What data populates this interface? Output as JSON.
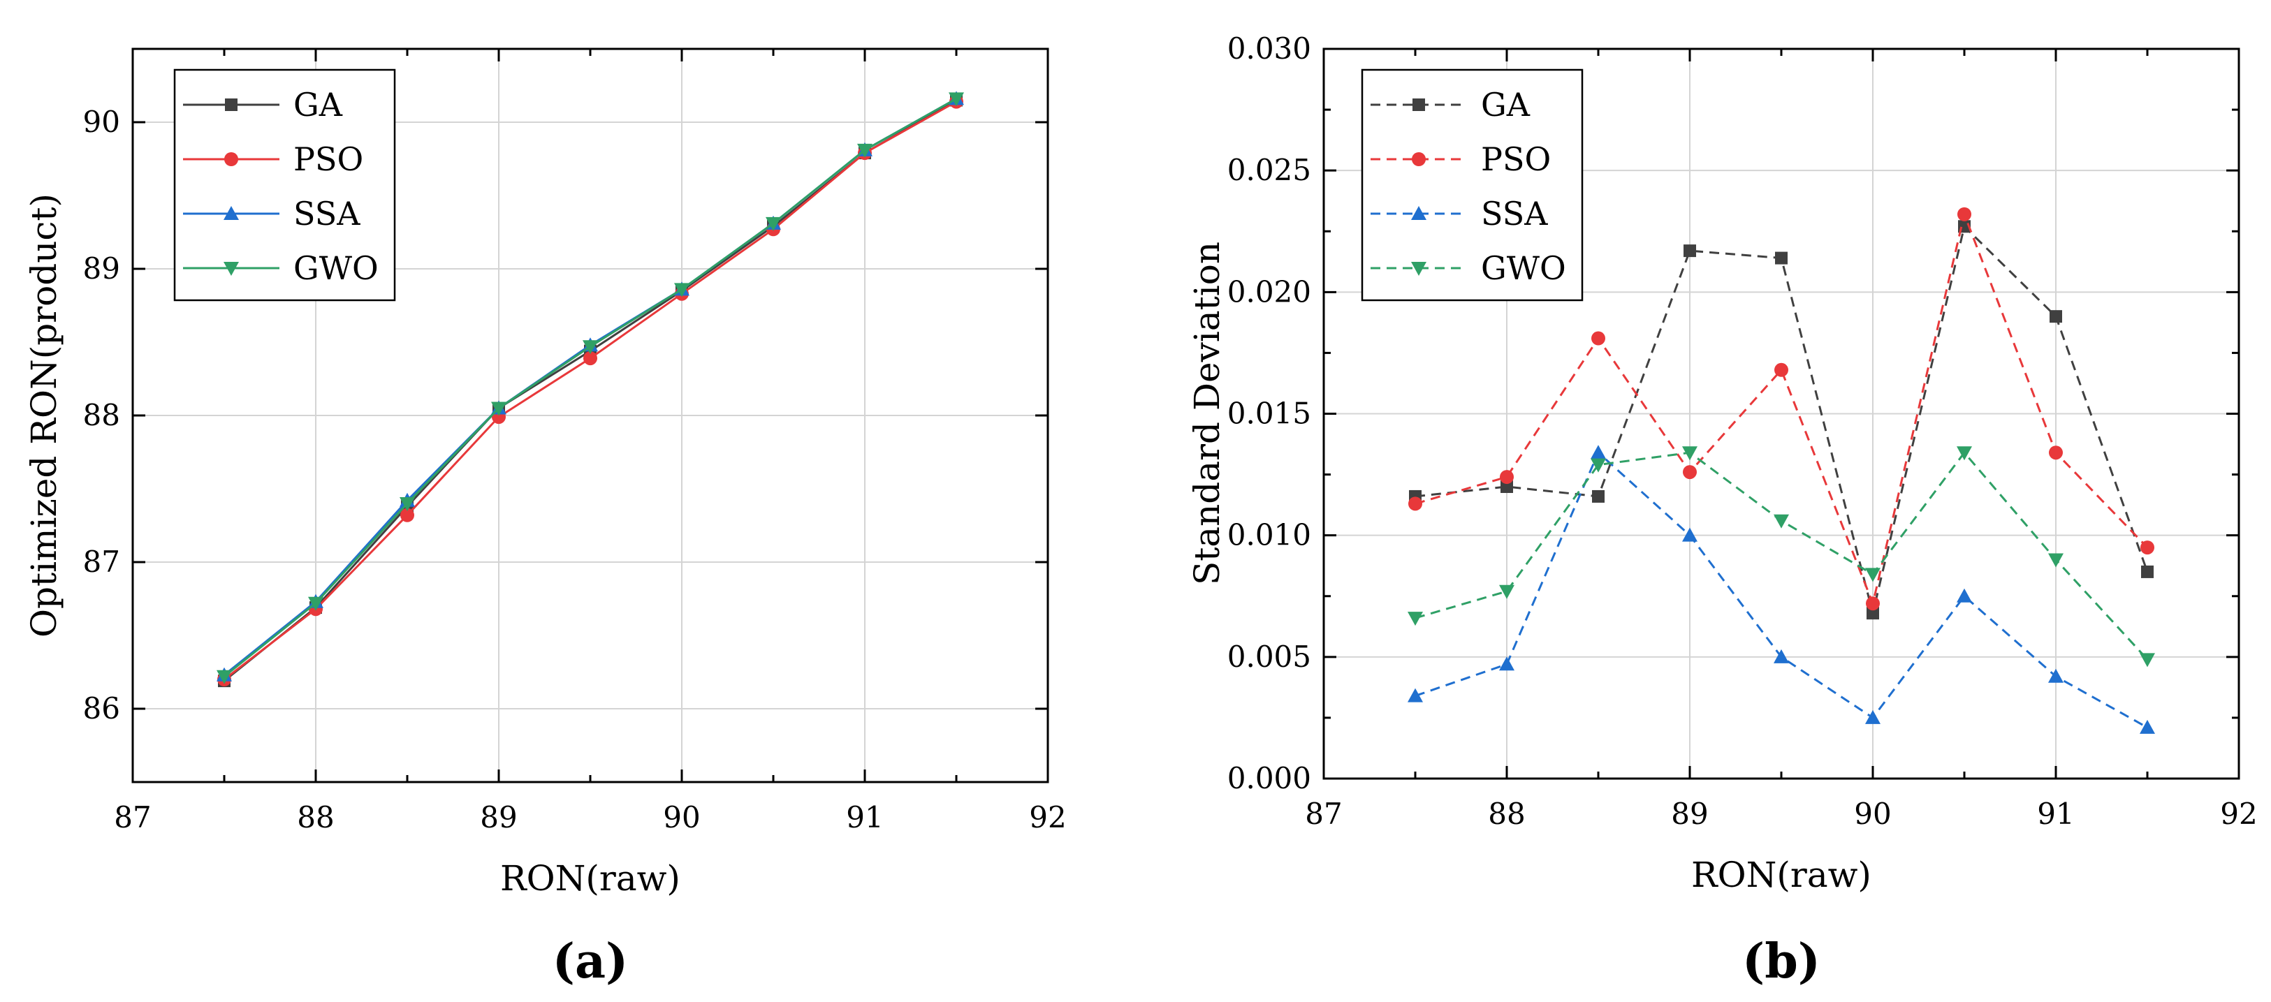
{
  "chart_data": [
    {
      "panel_label": "(a)",
      "type": "line",
      "xlabel": "RON(raw)",
      "ylabel": "Optimized RON(product)",
      "xlim": [
        87,
        92
      ],
      "ylim": [
        85.5,
        90.5
      ],
      "xticks": [
        87,
        88,
        89,
        90,
        91,
        92
      ],
      "yticks": [
        86,
        87,
        88,
        89,
        90
      ],
      "x": [
        87.5,
        88.0,
        88.5,
        89.0,
        89.5,
        90.0,
        90.5,
        91.0,
        91.5
      ],
      "grid": true,
      "legend_position": "top-left",
      "series": [
        {
          "name": "GA",
          "color": "#404040",
          "marker": "square",
          "line": "solid",
          "values": [
            86.19,
            86.69,
            87.38,
            88.05,
            88.44,
            88.85,
            89.29,
            89.79,
            90.15
          ]
        },
        {
          "name": "PSO",
          "color": "#e8383a",
          "marker": "circle",
          "line": "solid",
          "values": [
            86.2,
            86.68,
            87.32,
            87.99,
            88.39,
            88.83,
            89.27,
            89.79,
            90.14
          ]
        },
        {
          "name": "SSA",
          "color": "#1f6fcf",
          "marker": "triangle-up",
          "line": "solid",
          "values": [
            86.23,
            86.73,
            87.42,
            88.05,
            88.48,
            88.86,
            89.31,
            89.81,
            90.16
          ]
        },
        {
          "name": "GWO",
          "color": "#2fa066",
          "marker": "triangle-down",
          "line": "solid",
          "values": [
            86.22,
            86.72,
            87.4,
            88.05,
            88.47,
            88.86,
            89.31,
            89.81,
            90.16
          ]
        }
      ]
    },
    {
      "panel_label": "(b)",
      "type": "line",
      "xlabel": "RON(raw)",
      "ylabel": "Standard Deviation",
      "xlim": [
        87,
        92
      ],
      "ylim": [
        0,
        0.03
      ],
      "xticks": [
        87,
        88,
        89,
        90,
        91,
        92
      ],
      "yticks": [
        "0.000",
        "0.005",
        "0.010",
        "0.015",
        "0.020",
        "0.025",
        "0.030"
      ],
      "x": [
        87.5,
        88.0,
        88.5,
        89.0,
        89.5,
        90.0,
        90.5,
        91.0,
        91.5
      ],
      "grid": true,
      "legend_position": "top-left",
      "series": [
        {
          "name": "GA",
          "color": "#404040",
          "marker": "square",
          "line": "dashed",
          "values": [
            0.0116,
            0.012,
            0.0116,
            0.0217,
            0.0214,
            0.0068,
            0.0227,
            0.019,
            0.0085
          ]
        },
        {
          "name": "PSO",
          "color": "#e8383a",
          "marker": "circle",
          "line": "dashed",
          "values": [
            0.0113,
            0.0124,
            0.0181,
            0.0126,
            0.0168,
            0.0072,
            0.0232,
            0.0134,
            0.0095
          ]
        },
        {
          "name": "SSA",
          "color": "#1f6fcf",
          "marker": "triangle-up",
          "line": "dashed",
          "values": [
            0.0034,
            0.0047,
            0.0134,
            0.01,
            0.005,
            0.0025,
            0.0075,
            0.0042,
            0.0021
          ]
        },
        {
          "name": "GWO",
          "color": "#2fa066",
          "marker": "triangle-down",
          "line": "dashed",
          "values": [
            0.0066,
            0.0077,
            0.0129,
            0.0134,
            0.0106,
            0.0084,
            0.0134,
            0.009,
            0.0049
          ]
        }
      ]
    }
  ]
}
